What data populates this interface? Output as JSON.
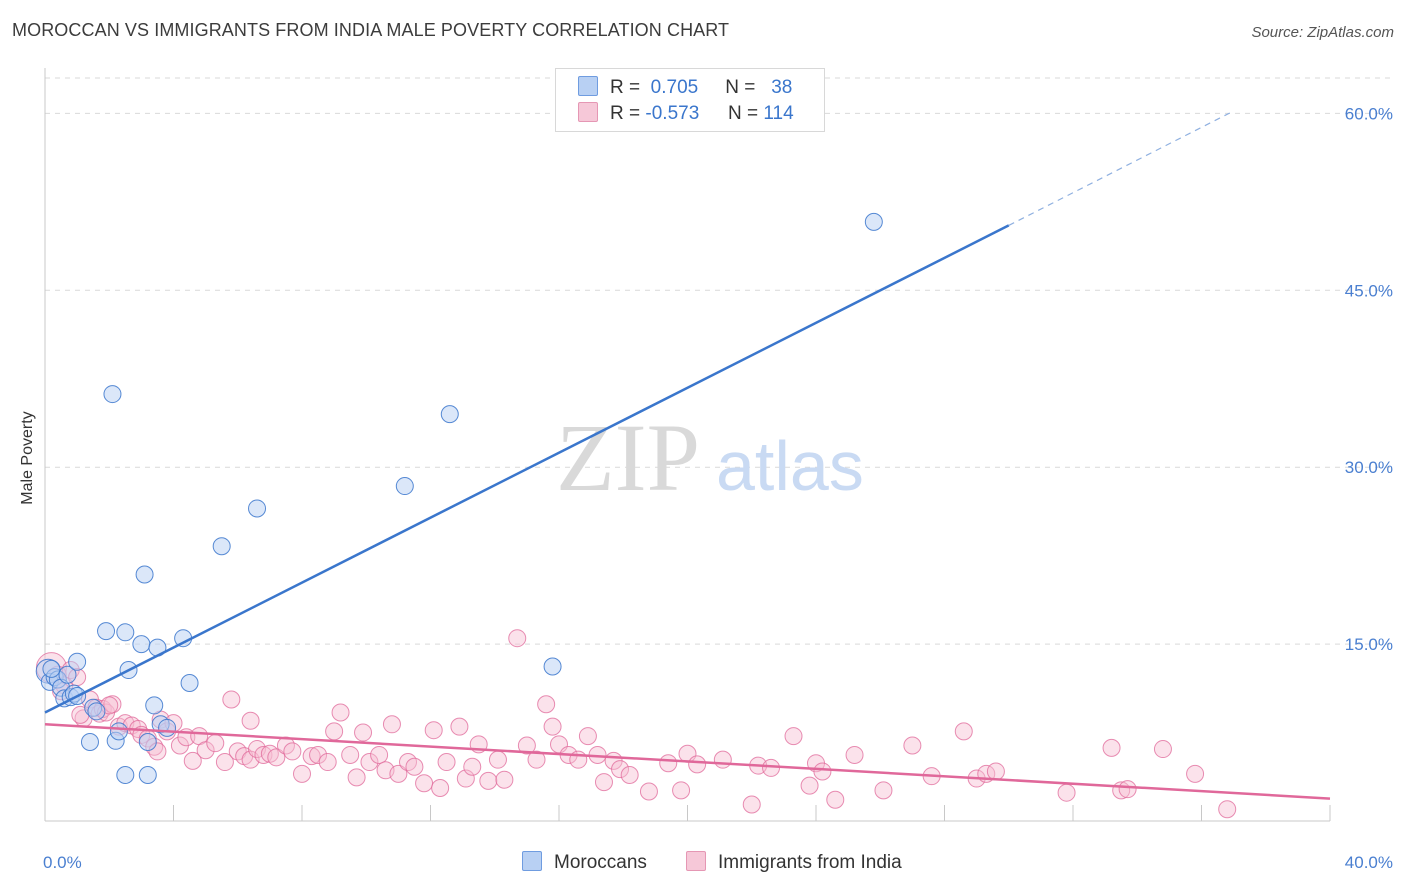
{
  "title": "MOROCCAN VS IMMIGRANTS FROM INDIA MALE POVERTY CORRELATION CHART",
  "source": "Source: ZipAtlas.com",
  "watermark": {
    "zip": "ZIP",
    "atlas": "atlas"
  },
  "legend_top": [
    {
      "r_label": "R =",
      "r_value": "0.705",
      "n_label": "N =",
      "n_value": "38"
    },
    {
      "r_label": "R =",
      "r_value": "-0.573",
      "n_label": "N =",
      "n_value": "114"
    }
  ],
  "legend_bottom": [
    "Moroccans",
    "Immigrants from India"
  ],
  "colors": {
    "blue": "#3a76cc",
    "blue_fill": "#b8d0f3",
    "pink": "#e0689a",
    "pink_fill": "#f6bfd2",
    "grid": "#d9d9d9"
  },
  "chart_data": {
    "type": "scatter",
    "title": "MOROCCAN VS IMMIGRANTS FROM INDIA MALE POVERTY CORRELATION CHART",
    "xlabel": "",
    "ylabel": "Male Poverty",
    "xlim": [
      0,
      40
    ],
    "ylim": [
      0,
      63
    ],
    "x_tick_labels": [
      "0.0%",
      "40.0%"
    ],
    "y_ticks": [
      15,
      30,
      45,
      60
    ],
    "y_tick_labels": [
      "15.0%",
      "30.0%",
      "45.0%",
      "60.0%"
    ],
    "grid": true,
    "series": [
      {
        "name": "Moroccans",
        "color": "#3a76cc",
        "r": 0.705,
        "n": 38,
        "trend": {
          "x0": 0,
          "y0": 9.2,
          "x1": 30,
          "y1": 50.5,
          "dash_x1": 37,
          "dash_y1": 60.2
        },
        "points": [
          [
            0.1,
            12.7
          ],
          [
            0.15,
            11.8
          ],
          [
            0.3,
            12.2
          ],
          [
            0.4,
            12.0
          ],
          [
            0.5,
            11.3
          ],
          [
            0.6,
            10.4
          ],
          [
            0.7,
            12.4
          ],
          [
            0.8,
            10.5
          ],
          [
            0.9,
            10.8
          ],
          [
            1.0,
            13.5
          ],
          [
            1.4,
            6.7
          ],
          [
            1.5,
            9.6
          ],
          [
            1.6,
            9.3
          ],
          [
            1.9,
            16.1
          ],
          [
            2.1,
            36.2
          ],
          [
            2.2,
            6.8
          ],
          [
            2.3,
            7.6
          ],
          [
            2.5,
            16.0
          ],
          [
            2.5,
            3.9
          ],
          [
            2.6,
            12.8
          ],
          [
            3.0,
            15.0
          ],
          [
            3.1,
            20.9
          ],
          [
            3.2,
            3.9
          ],
          [
            3.4,
            9.8
          ],
          [
            3.5,
            14.7
          ],
          [
            3.6,
            8.2
          ],
          [
            3.8,
            7.9
          ],
          [
            4.3,
            15.5
          ],
          [
            4.5,
            11.7
          ],
          [
            5.5,
            23.3
          ],
          [
            6.6,
            26.5
          ],
          [
            11.2,
            28.4
          ],
          [
            12.6,
            34.5
          ],
          [
            15.8,
            13.1
          ],
          [
            25.8,
            50.8
          ],
          [
            3.2,
            6.7
          ],
          [
            0.2,
            12.9
          ],
          [
            1.0,
            10.6
          ]
        ]
      },
      {
        "name": "Immigrants from India",
        "color": "#e0689a",
        "r": -0.573,
        "n": 114,
        "trend": {
          "x0": 0,
          "y0": 8.2,
          "x1": 40,
          "y1": 1.9
        },
        "points": [
          [
            0.2,
            13.0
          ],
          [
            0.4,
            12.4
          ],
          [
            0.6,
            11.5
          ],
          [
            0.8,
            12.8
          ],
          [
            1.0,
            12.2
          ],
          [
            1.2,
            8.7
          ],
          [
            1.4,
            10.3
          ],
          [
            1.6,
            9.6
          ],
          [
            1.7,
            9.1
          ],
          [
            1.8,
            9.5
          ],
          [
            1.9,
            9.2
          ],
          [
            2.1,
            9.9
          ],
          [
            2.3,
            8.0
          ],
          [
            2.5,
            8.3
          ],
          [
            2.7,
            8.1
          ],
          [
            2.9,
            7.8
          ],
          [
            3.0,
            7.3
          ],
          [
            3.2,
            7.0
          ],
          [
            3.4,
            6.3
          ],
          [
            3.5,
            5.9
          ],
          [
            3.6,
            8.6
          ],
          [
            3.8,
            7.6
          ],
          [
            4.0,
            8.3
          ],
          [
            4.2,
            6.4
          ],
          [
            4.4,
            7.1
          ],
          [
            4.6,
            5.1
          ],
          [
            4.8,
            7.2
          ],
          [
            5.0,
            6.0
          ],
          [
            5.3,
            6.6
          ],
          [
            5.6,
            5.0
          ],
          [
            5.8,
            10.3
          ],
          [
            6.0,
            5.9
          ],
          [
            6.2,
            5.5
          ],
          [
            6.4,
            5.2
          ],
          [
            6.6,
            6.1
          ],
          [
            6.8,
            5.6
          ],
          [
            7.0,
            5.7
          ],
          [
            7.2,
            5.4
          ],
          [
            7.5,
            6.4
          ],
          [
            7.7,
            5.9
          ],
          [
            8.0,
            4.0
          ],
          [
            8.3,
            5.5
          ],
          [
            8.5,
            5.6
          ],
          [
            8.8,
            5.0
          ],
          [
            9.0,
            7.6
          ],
          [
            9.2,
            9.2
          ],
          [
            9.5,
            5.6
          ],
          [
            9.7,
            3.7
          ],
          [
            9.9,
            7.5
          ],
          [
            10.1,
            5.0
          ],
          [
            10.4,
            5.6
          ],
          [
            10.6,
            4.3
          ],
          [
            10.8,
            8.2
          ],
          [
            11.0,
            4.0
          ],
          [
            11.3,
            5.0
          ],
          [
            11.5,
            4.6
          ],
          [
            11.8,
            3.2
          ],
          [
            12.1,
            7.7
          ],
          [
            12.3,
            2.8
          ],
          [
            12.5,
            5.0
          ],
          [
            12.9,
            8.0
          ],
          [
            13.1,
            3.6
          ],
          [
            13.3,
            4.6
          ],
          [
            13.5,
            6.5
          ],
          [
            13.8,
            3.4
          ],
          [
            14.1,
            5.2
          ],
          [
            14.3,
            3.5
          ],
          [
            14.7,
            15.5
          ],
          [
            15.0,
            6.4
          ],
          [
            15.3,
            5.2
          ],
          [
            15.6,
            9.9
          ],
          [
            15.8,
            8.0
          ],
          [
            16.0,
            6.5
          ],
          [
            16.3,
            5.6
          ],
          [
            16.6,
            5.2
          ],
          [
            16.9,
            7.2
          ],
          [
            17.2,
            5.6
          ],
          [
            17.4,
            3.3
          ],
          [
            17.7,
            5.1
          ],
          [
            17.9,
            4.4
          ],
          [
            18.2,
            3.9
          ],
          [
            18.8,
            2.5
          ],
          [
            19.4,
            4.9
          ],
          [
            19.8,
            2.6
          ],
          [
            20.0,
            5.7
          ],
          [
            20.3,
            4.8
          ],
          [
            21.1,
            5.2
          ],
          [
            22.0,
            1.4
          ],
          [
            22.2,
            4.7
          ],
          [
            22.6,
            4.5
          ],
          [
            23.3,
            7.2
          ],
          [
            23.8,
            3.0
          ],
          [
            24.0,
            4.9
          ],
          [
            24.2,
            4.2
          ],
          [
            24.6,
            1.8
          ],
          [
            25.2,
            5.6
          ],
          [
            26.1,
            2.6
          ],
          [
            27.0,
            6.4
          ],
          [
            27.6,
            3.8
          ],
          [
            28.6,
            7.6
          ],
          [
            29.0,
            3.6
          ],
          [
            29.3,
            4.0
          ],
          [
            29.6,
            4.2
          ],
          [
            31.8,
            2.4
          ],
          [
            33.2,
            6.2
          ],
          [
            33.5,
            2.6
          ],
          [
            33.7,
            2.7
          ],
          [
            34.8,
            6.1
          ],
          [
            35.8,
            4.0
          ],
          [
            36.8,
            1.0
          ],
          [
            0.5,
            11.0
          ],
          [
            1.1,
            9.0
          ],
          [
            2.0,
            9.8
          ],
          [
            6.4,
            8.5
          ]
        ]
      }
    ]
  }
}
